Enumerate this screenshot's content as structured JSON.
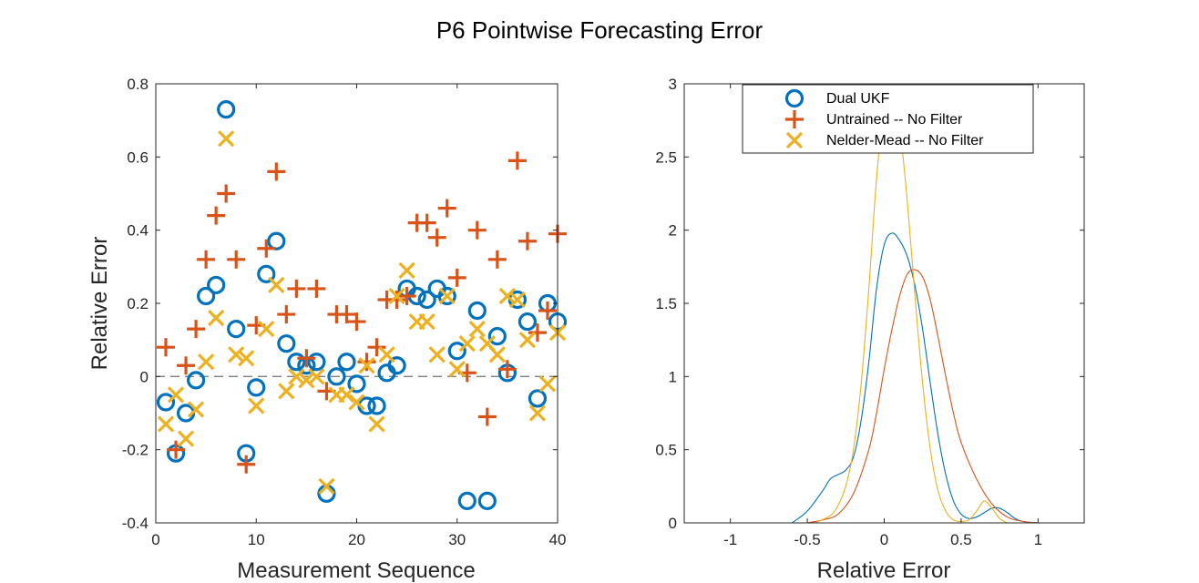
{
  "chart_data": {
    "title": "P6 Pointwise Forecasting Error",
    "colors": {
      "dual": "#0072BD",
      "untrained": "#D95319",
      "nelder": "#EDB120",
      "refline": "#808080"
    },
    "panels": [
      {
        "type": "scatter",
        "xlabel": "Measurement Sequence",
        "ylabel": "Relative Error",
        "xlim": [
          0,
          40
        ],
        "ylim": [
          -0.4,
          0.8
        ],
        "xticks": [
          0,
          10,
          20,
          30,
          40
        ],
        "xtick_labels": [
          "0",
          "10",
          "20",
          "30",
          "40"
        ],
        "yticks": [
          -0.4,
          -0.2,
          0,
          0.2,
          0.4,
          0.6,
          0.8
        ],
        "ytick_labels": [
          "-0.4",
          "-0.2",
          "0",
          "0.2",
          "0.4",
          "0.6",
          "0.8"
        ],
        "reference_line": {
          "y": 0,
          "style": "dashed"
        },
        "series": [
          {
            "name": "Dual UKF",
            "marker": "o",
            "x": [
              1,
              2,
              3,
              4,
              5,
              6,
              7,
              8,
              9,
              10,
              11,
              12,
              13,
              14,
              15,
              16,
              17,
              18,
              19,
              20,
              21,
              22,
              23,
              24,
              25,
              26,
              27,
              28,
              29,
              30,
              31,
              32,
              33,
              34,
              35,
              36,
              37,
              38,
              39,
              40
            ],
            "y": [
              -0.07,
              -0.21,
              -0.1,
              -0.01,
              0.22,
              0.25,
              0.73,
              0.13,
              -0.21,
              -0.03,
              0.28,
              0.37,
              0.09,
              0.04,
              0.03,
              0.04,
              -0.32,
              0.0,
              0.04,
              -0.02,
              -0.08,
              -0.08,
              0.01,
              0.03,
              0.24,
              0.22,
              0.21,
              0.24,
              0.22,
              0.07,
              -0.34,
              0.18,
              -0.34,
              0.11,
              0.01,
              0.21,
              0.15,
              -0.06,
              0.2,
              0.15
            ]
          },
          {
            "name": "Untrained -- No Filter",
            "marker": "+",
            "x": [
              1,
              2,
              3,
              4,
              5,
              6,
              7,
              8,
              9,
              10,
              11,
              12,
              13,
              14,
              15,
              16,
              17,
              18,
              19,
              20,
              21,
              22,
              23,
              24,
              25,
              26,
              27,
              28,
              29,
              30,
              31,
              32,
              33,
              34,
              35,
              36,
              37,
              38,
              39,
              40
            ],
            "y": [
              0.08,
              -0.2,
              0.03,
              0.13,
              0.32,
              0.44,
              0.5,
              0.32,
              -0.24,
              0.14,
              0.35,
              0.56,
              0.17,
              0.24,
              0.05,
              0.24,
              -0.04,
              0.17,
              0.17,
              0.15,
              0.04,
              0.08,
              0.21,
              0.21,
              0.22,
              0.42,
              0.42,
              0.38,
              0.46,
              0.27,
              0.01,
              0.4,
              -0.11,
              0.32,
              0.02,
              0.59,
              0.37,
              0.12,
              0.18,
              0.39
            ]
          },
          {
            "name": "Nelder-Mead -- No Filter",
            "marker": "x",
            "x": [
              1,
              2,
              3,
              4,
              5,
              6,
              7,
              8,
              9,
              10,
              11,
              12,
              13,
              14,
              15,
              16,
              17,
              18,
              19,
              20,
              21,
              22,
              23,
              24,
              25,
              26,
              27,
              28,
              29,
              30,
              31,
              32,
              33,
              34,
              35,
              36,
              37,
              38,
              39,
              40
            ],
            "y": [
              -0.13,
              -0.05,
              -0.17,
              -0.09,
              0.04,
              0.16,
              0.65,
              0.06,
              0.05,
              -0.08,
              0.13,
              0.25,
              -0.04,
              0.0,
              -0.01,
              0.0,
              -0.3,
              -0.05,
              -0.05,
              -0.07,
              0.03,
              -0.13,
              0.06,
              0.22,
              0.29,
              0.15,
              0.15,
              0.06,
              0.22,
              0.02,
              0.09,
              0.13,
              0.09,
              0.06,
              0.22,
              0.21,
              0.1,
              -0.1,
              -0.02,
              0.12
            ]
          }
        ]
      },
      {
        "type": "line",
        "xlabel": "Relative Error",
        "ylabel": "",
        "xlim": [
          -1.3,
          1.3
        ],
        "ylim": [
          0,
          3
        ],
        "xticks": [
          -1,
          -0.5,
          0,
          0.5,
          1
        ],
        "xtick_labels": [
          "-1",
          "-0.5",
          "0",
          "0.5",
          "1"
        ],
        "yticks": [
          0,
          0.5,
          1,
          1.5,
          2,
          2.5,
          3
        ],
        "ytick_labels": [
          "0",
          "0.5",
          "1",
          "1.5",
          "2",
          "2.5",
          "3"
        ],
        "legend_position": "top",
        "legend": [
          "Dual UKF",
          "Untrained -- No Filter",
          "Nelder-Mead -- No Filter"
        ],
        "series": [
          {
            "name": "Dual UKF",
            "x": [
              -0.6,
              -0.5,
              -0.4,
              -0.35,
              -0.3,
              -0.25,
              -0.2,
              -0.15,
              -0.1,
              -0.05,
              0,
              0.05,
              0.1,
              0.15,
              0.2,
              0.25,
              0.3,
              0.35,
              0.4,
              0.45,
              0.5,
              0.55,
              0.6,
              0.65,
              0.7,
              0.75,
              0.8,
              0.85,
              0.9,
              1.0
            ],
            "y": [
              0.0,
              0.08,
              0.22,
              0.3,
              0.33,
              0.36,
              0.45,
              0.7,
              1.1,
              1.6,
              1.9,
              1.98,
              1.93,
              1.82,
              1.62,
              1.32,
              0.95,
              0.6,
              0.33,
              0.15,
              0.06,
              0.03,
              0.04,
              0.07,
              0.1,
              0.1,
              0.07,
              0.03,
              0.01,
              0.0
            ]
          },
          {
            "name": "Untrained -- No Filter",
            "x": [
              -0.5,
              -0.4,
              -0.3,
              -0.2,
              -0.1,
              -0.05,
              0,
              0.05,
              0.1,
              0.15,
              0.2,
              0.25,
              0.3,
              0.35,
              0.4,
              0.45,
              0.5,
              0.6,
              0.7,
              0.8,
              0.9,
              1.0
            ],
            "y": [
              0.0,
              0.02,
              0.06,
              0.2,
              0.5,
              0.75,
              1.05,
              1.32,
              1.55,
              1.7,
              1.73,
              1.68,
              1.52,
              1.27,
              1.0,
              0.75,
              0.55,
              0.3,
              0.13,
              0.04,
              0.01,
              0.0
            ]
          },
          {
            "name": "Nelder-Mead -- No Filter",
            "x": [
              -0.45,
              -0.35,
              -0.3,
              -0.25,
              -0.2,
              -0.15,
              -0.1,
              -0.05,
              0,
              0.05,
              0.1,
              0.15,
              0.2,
              0.25,
              0.3,
              0.35,
              0.4,
              0.45,
              0.5,
              0.55,
              0.6,
              0.65,
              0.7,
              0.75,
              0.8
            ],
            "y": [
              0.0,
              0.05,
              0.12,
              0.25,
              0.5,
              0.95,
              1.6,
              2.35,
              2.85,
              2.95,
              2.7,
              2.2,
              1.55,
              0.95,
              0.5,
              0.22,
              0.08,
              0.02,
              0.01,
              0.02,
              0.08,
              0.15,
              0.1,
              0.03,
              0.0
            ]
          }
        ]
      }
    ]
  }
}
